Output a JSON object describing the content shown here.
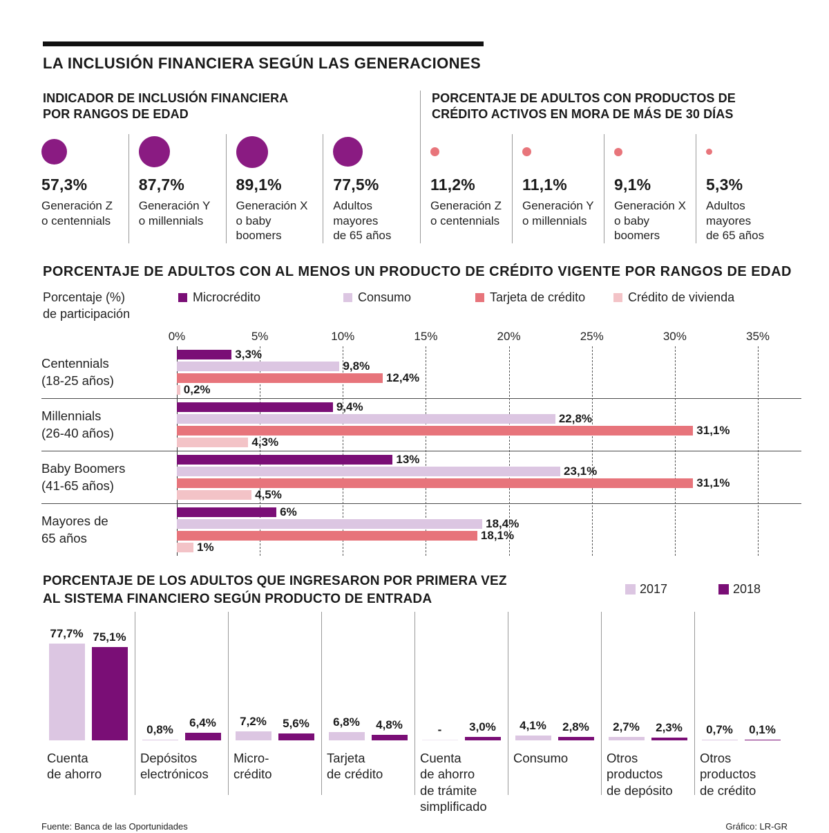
{
  "page_title": "LA INCLUSIÓN FINANCIERA SEGÚN LAS GENERACIONES",
  "colors": {
    "microcredito": "#7A0E76",
    "consumo": "#DCC6E2",
    "tarjeta_credito": "#E7747B",
    "credito_vivienda": "#F3C3C7",
    "circle_purple": "#8A1B82",
    "dot_salmon": "#E8757B",
    "bar_2017": "#DCC6E2",
    "bar_2018": "#7A0E76",
    "missing_bar": "#F0E6F2"
  },
  "indicator_section": {
    "title_line1": "INDICADOR DE INCLUSIÓN FINANCIERA",
    "title_line2": "POR RANGOS DE EDAD",
    "items": [
      {
        "value": "57,3%",
        "value_num": 57.3,
        "label_line1": "Generación Z",
        "label_line2": "o centennials"
      },
      {
        "value": "87,7%",
        "value_num": 87.7,
        "label_line1": "Generación Y",
        "label_line2": "o millennials"
      },
      {
        "value": "89,1%",
        "value_num": 89.1,
        "label_line1": "Generación X",
        "label_line2": "o baby boomers"
      },
      {
        "value": "77,5%",
        "value_num": 77.5,
        "label_line1": "Adultos mayores",
        "label_line2": "de 65 años"
      }
    ]
  },
  "mora_section": {
    "title_line1": "PORCENTAJE DE ADULTOS CON PRODUCTOS DE",
    "title_line2": "CRÉDITO ACTIVOS EN MORA DE MÁS DE 30 DÍAS",
    "items": [
      {
        "value": "11,2%",
        "value_num": 11.2,
        "label_line1": "Generación Z",
        "label_line2": "o centennials"
      },
      {
        "value": "11,1%",
        "value_num": 11.1,
        "label_line1": "Generación Y",
        "label_line2": "o millennials"
      },
      {
        "value": "9,1%",
        "value_num": 9.1,
        "label_line1": "Generación X",
        "label_line2": "o baby boomers"
      },
      {
        "value": "5,3%",
        "value_num": 5.3,
        "label_line1": "Adultos mayores",
        "label_line2": "de 65 años"
      }
    ]
  },
  "chart_data": [
    {
      "type": "bar",
      "orientation": "horizontal",
      "title": "PORCENTAJE DE ADULTOS CON AL MENOS UN PRODUCTO DE CRÉDITO VIGENTE POR RANGOS DE EDAD",
      "axis_label_lines": [
        "Porcentaje (%)",
        "de participación"
      ],
      "xlim": [
        0,
        35
      ],
      "x_ticks": [
        "0%",
        "5%",
        "10%",
        "15%",
        "20%",
        "25%",
        "30%",
        "35%"
      ],
      "legend": [
        "Microcrédito",
        "Consumo",
        "Tarjeta de crédito",
        "Crédito de vivienda"
      ],
      "grid": true,
      "groups": [
        {
          "label_line1": "Centennials",
          "label_line2": "(18-25 años)",
          "values": [
            3.3,
            9.8,
            12.4,
            0.2
          ],
          "value_labels": [
            "3,3%",
            "9,8%",
            "12,4%",
            "0,2%"
          ]
        },
        {
          "label_line1": "Millennials",
          "label_line2": "(26-40 años)",
          "values": [
            9.4,
            22.8,
            31.1,
            4.3
          ],
          "value_labels": [
            "9,4%",
            "22,8%",
            "31,1%",
            "4,3%"
          ]
        },
        {
          "label_line1": "Baby Boomers",
          "label_line2": "(41-65 años)",
          "values": [
            13,
            23.1,
            31.1,
            4.5
          ],
          "value_labels": [
            "13%",
            "23,1%",
            "31,1%",
            "4,5%"
          ]
        },
        {
          "label_line1": "Mayores de",
          "label_line2": "65 años",
          "values": [
            6,
            18.4,
            18.1,
            1
          ],
          "value_labels": [
            "6%",
            "18,4%",
            "18,1%",
            "1%"
          ]
        }
      ]
    },
    {
      "type": "bar",
      "orientation": "vertical",
      "title_lines": [
        "PORCENTAJE DE LOS ADULTOS QUE INGRESARON POR PRIMERA VEZ",
        "AL SISTEMA FINANCIERO SEGÚN PRODUCTO DE ENTRADA"
      ],
      "legend": [
        "2017",
        "2018"
      ],
      "ylim": [
        0,
        80
      ],
      "categories": [
        {
          "label_lines": [
            "Cuenta",
            "de ahorro"
          ],
          "values": [
            77.7,
            75.1
          ],
          "value_labels": [
            "77,7%",
            "75,1%"
          ]
        },
        {
          "label_lines": [
            "Depósitos",
            "electrónicos"
          ],
          "values": [
            0.8,
            6.4
          ],
          "value_labels": [
            "0,8%",
            "6,4%"
          ]
        },
        {
          "label_lines": [
            "Micro-",
            "crédito"
          ],
          "values": [
            7.2,
            5.6
          ],
          "value_labels": [
            "7,2%",
            "5,6%"
          ]
        },
        {
          "label_lines": [
            "Tarjeta",
            "de crédito"
          ],
          "values": [
            6.8,
            4.8
          ],
          "value_labels": [
            "6,8%",
            "4,8%"
          ]
        },
        {
          "label_lines": [
            "Cuenta",
            "de ahorro",
            "de trámite",
            "simplificado"
          ],
          "values": [
            null,
            3.0
          ],
          "value_labels": [
            "-",
            "3,0%"
          ]
        },
        {
          "label_lines": [
            "Consumo"
          ],
          "values": [
            4.1,
            2.8
          ],
          "value_labels": [
            "4,1%",
            "2,8%"
          ]
        },
        {
          "label_lines": [
            "Otros",
            "productos",
            "de depósito"
          ],
          "values": [
            2.7,
            2.3
          ],
          "value_labels": [
            "2,7%",
            "2,3%"
          ]
        },
        {
          "label_lines": [
            "Otros",
            "productos",
            "de crédito"
          ],
          "values": [
            0.7,
            0.1
          ],
          "value_labels": [
            "0,7%",
            "0,1%"
          ]
        }
      ]
    }
  ],
  "footer": {
    "source": "Fuente: Banca de las Oportunidades",
    "credit": "Gráfico: LR-GR"
  }
}
